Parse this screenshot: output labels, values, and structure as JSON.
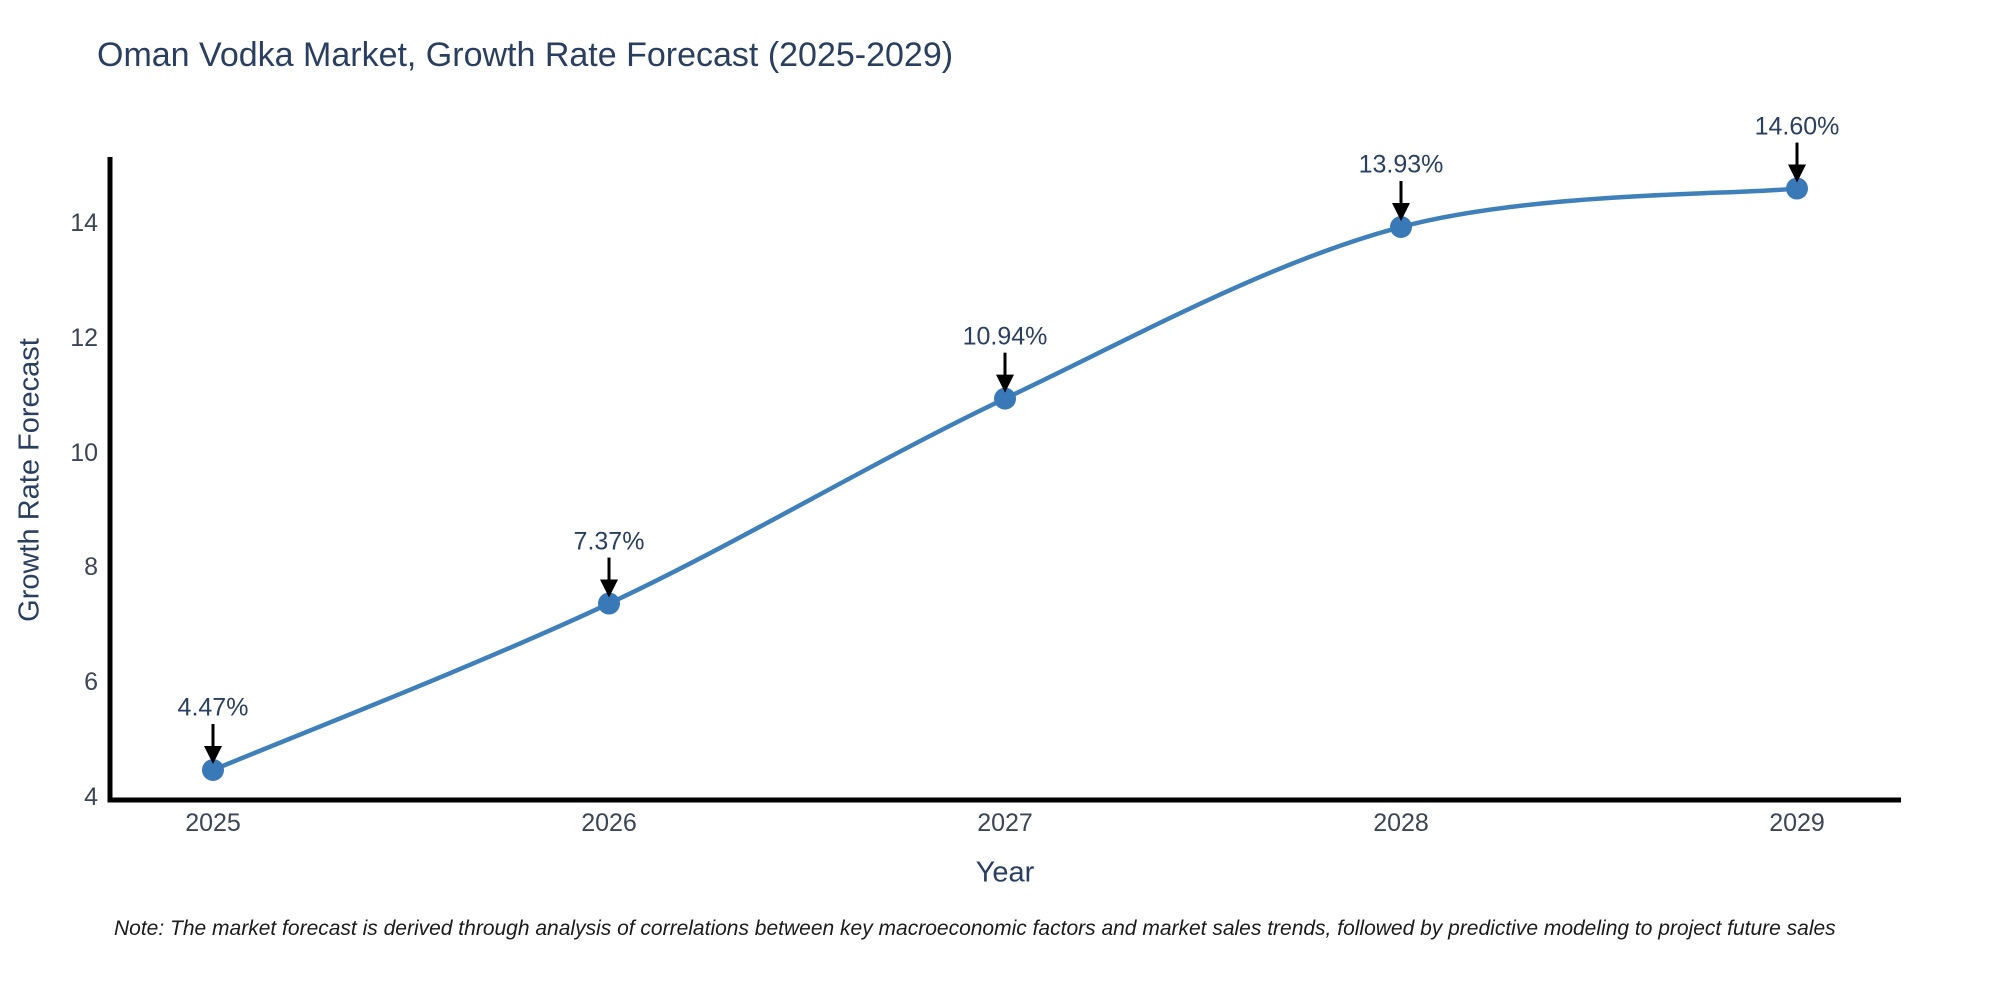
{
  "title": "Oman Vodka Market, Growth Rate Forecast (2025-2029)",
  "note": "Note: The market forecast is derived through analysis of correlations between key macroeconomic factors and market sales trends, followed by predictive modeling to project future sales",
  "chart_data": {
    "type": "line",
    "title": "Oman Vodka Market, Growth Rate Forecast (2025-2029)",
    "xlabel": "Year",
    "ylabel": "Growth Rate Forecast",
    "categories": [
      2025,
      2026,
      2027,
      2028,
      2029
    ],
    "series": [
      {
        "name": "Growth Rate Forecast",
        "values": [
          4.47,
          7.37,
          10.94,
          13.93,
          14.6
        ]
      }
    ],
    "point_labels": [
      "4.47%",
      "7.37%",
      "10.94%",
      "13.93%",
      "14.60%"
    ],
    "yticks": [
      4,
      6,
      8,
      10,
      12,
      14
    ],
    "ylim": [
      3.95,
      15.15
    ],
    "line_shape": "spline",
    "grid": false,
    "legend_position": "none",
    "annotations_have_arrows": true,
    "colors": {
      "line": "#3f7fba",
      "marker": "#3a79b8",
      "axis_line": "#000000",
      "title_text": "#2a3f5f",
      "axis_title_text": "#2a3f5f",
      "tick_text": "#3b4554",
      "annotation_text": "#2a3f5f",
      "arrow": "#000000",
      "note_text": "#1a1a1a",
      "background": "#ffffff"
    }
  }
}
